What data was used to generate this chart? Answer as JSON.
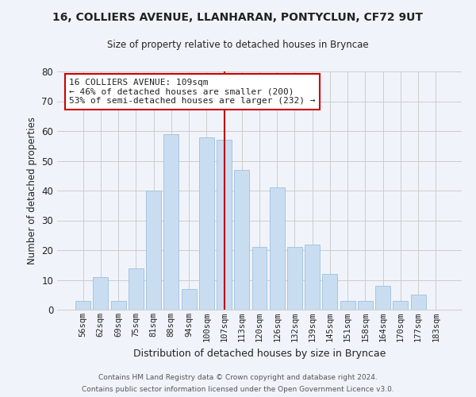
{
  "title": "16, COLLIERS AVENUE, LLANHARAN, PONTYCLUN, CF72 9UT",
  "subtitle": "Size of property relative to detached houses in Bryncae",
  "xlabel": "Distribution of detached houses by size in Bryncae",
  "ylabel": "Number of detached properties",
  "bar_labels": [
    "56sqm",
    "62sqm",
    "69sqm",
    "75sqm",
    "81sqm",
    "88sqm",
    "94sqm",
    "100sqm",
    "107sqm",
    "113sqm",
    "120sqm",
    "126sqm",
    "132sqm",
    "139sqm",
    "145sqm",
    "151sqm",
    "158sqm",
    "164sqm",
    "170sqm",
    "177sqm",
    "183sqm"
  ],
  "bar_values": [
    3,
    11,
    3,
    14,
    40,
    59,
    7,
    58,
    57,
    47,
    21,
    41,
    21,
    22,
    12,
    3,
    3,
    8,
    3,
    5,
    0
  ],
  "bar_color": "#c9ddf1",
  "bar_edge_color": "#a8c4e0",
  "marker_index": 8,
  "marker_color": "#bb0000",
  "annotation_title": "16 COLLIERS AVENUE: 109sqm",
  "annotation_line1": "← 46% of detached houses are smaller (200)",
  "annotation_line2": "53% of semi-detached houses are larger (232) →",
  "annotation_box_facecolor": "#ffffff",
  "annotation_box_edgecolor": "#cc0000",
  "ylim": [
    0,
    80
  ],
  "yticks": [
    0,
    10,
    20,
    30,
    40,
    50,
    60,
    70,
    80
  ],
  "footer1": "Contains HM Land Registry data © Crown copyright and database right 2024.",
  "footer2": "Contains public sector information licensed under the Open Government Licence v3.0.",
  "bg_color": "#f0f4fa"
}
